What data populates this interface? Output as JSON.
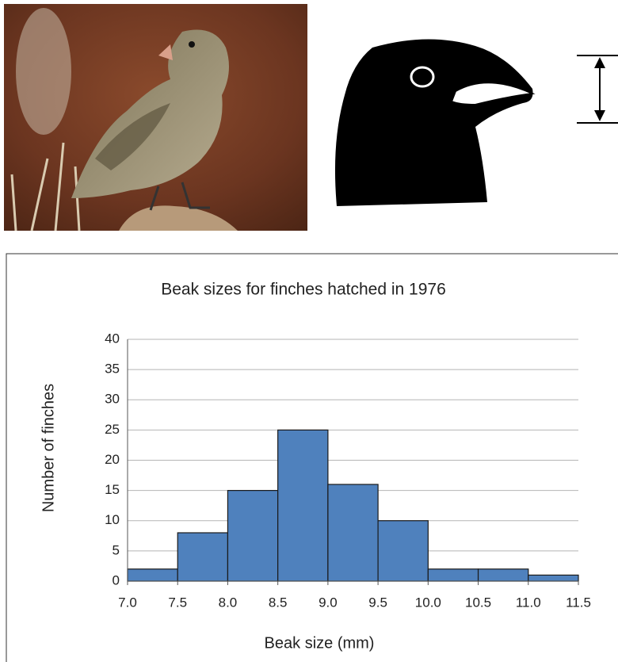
{
  "chart_data": {
    "type": "histogram",
    "title": "Beak sizes for finches hatched in 1976",
    "x_label": "Beak size (mm)",
    "y_label": "Number of finches",
    "bins": [
      7.0,
      7.5,
      8.0,
      8.5,
      9.0,
      9.5,
      10.0,
      10.5,
      11.0,
      11.5
    ],
    "values": [
      2,
      8,
      15,
      25,
      16,
      10,
      2,
      2,
      1
    ],
    "color": "#4f81bd",
    "xlim": [
      7.0,
      11.5
    ],
    "xticks": [
      {
        "value": 7.0,
        "label": "7.0"
      },
      {
        "value": 7.5,
        "label": "7.5"
      },
      {
        "value": 8.0,
        "label": "8.0"
      },
      {
        "value": 8.5,
        "label": "8.5"
      },
      {
        "value": 9.0,
        "label": "9.0"
      },
      {
        "value": 9.5,
        "label": "9.5"
      },
      {
        "value": 10.0,
        "label": "10.0"
      },
      {
        "value": 10.5,
        "label": "10.5"
      },
      {
        "value": 11.0,
        "label": "11.0"
      },
      {
        "value": 11.5,
        "label": "11.5"
      }
    ],
    "ylim": [
      0,
      40
    ],
    "yticks": [
      0,
      5,
      10,
      15,
      20,
      25,
      30,
      35,
      40
    ],
    "grid": true
  }
}
